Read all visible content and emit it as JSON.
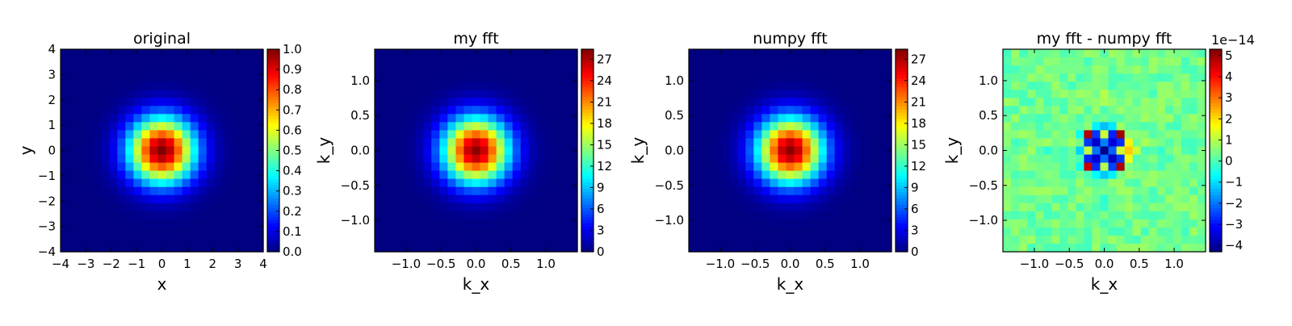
{
  "chart_data": [
    {
      "type": "heatmap",
      "title": "original",
      "xlabel": "x",
      "ylabel": "y",
      "xlim": [
        -4,
        4
      ],
      "ylim": [
        -4,
        4
      ],
      "xticks": [
        "−4",
        "−3",
        "−2",
        "−1",
        "0",
        "1",
        "2",
        "3",
        "4"
      ],
      "yticks": [
        "−4",
        "−3",
        "−2",
        "−1",
        "0",
        "1",
        "2",
        "3",
        "4"
      ],
      "colormap": "jet",
      "grid_size": 25,
      "field": "gaussian",
      "sigma": 0.95,
      "peak": 1.0,
      "colorbar": {
        "range": [
          0.0,
          1.0
        ],
        "ticks": [
          "0.0",
          "0.1",
          "0.2",
          "0.3",
          "0.4",
          "0.5",
          "0.6",
          "0.7",
          "0.8",
          "0.9",
          "1.0"
        ],
        "offset_label": ""
      }
    },
    {
      "type": "heatmap",
      "title": "my fft",
      "xlabel": "k_x",
      "ylabel": "k_y",
      "xlim": [
        -1.45,
        1.45
      ],
      "ylim": [
        -1.45,
        1.45
      ],
      "xticks": [
        "−1.0",
        "−0.5",
        "0.0",
        "0.5",
        "1.0"
      ],
      "yticks": [
        "−1.0",
        "−0.5",
        "0.0",
        "0.5",
        "1.0"
      ],
      "colormap": "jet",
      "grid_size": 25,
      "field": "gaussian",
      "sigma": 0.95,
      "peak": 28.0,
      "colorbar": {
        "range": [
          0,
          28.4
        ],
        "ticks": [
          "0",
          "3",
          "6",
          "9",
          "12",
          "15",
          "18",
          "21",
          "24",
          "27"
        ],
        "offset_label": ""
      }
    },
    {
      "type": "heatmap",
      "title": "numpy fft",
      "xlabel": "k_x",
      "ylabel": "k_y",
      "xlim": [
        -1.45,
        1.45
      ],
      "ylim": [
        -1.45,
        1.45
      ],
      "xticks": [
        "−1.0",
        "−0.5",
        "0.0",
        "0.5",
        "1.0"
      ],
      "yticks": [
        "−1.0",
        "−0.5",
        "0.0",
        "0.5",
        "1.0"
      ],
      "colormap": "jet",
      "grid_size": 25,
      "field": "gaussian",
      "sigma": 0.95,
      "peak": 28.0,
      "colorbar": {
        "range": [
          0,
          28.4
        ],
        "ticks": [
          "0",
          "3",
          "6",
          "9",
          "12",
          "15",
          "18",
          "21",
          "24",
          "27"
        ],
        "offset_label": ""
      }
    },
    {
      "type": "heatmap",
      "title": "my fft - numpy fft",
      "xlabel": "k_x",
      "ylabel": "k_y",
      "xlim": [
        -1.45,
        1.45
      ],
      "ylim": [
        -1.45,
        1.45
      ],
      "xticks": [
        "−1.0",
        "−0.5",
        "0.0",
        "0.5",
        "1.0"
      ],
      "yticks": [
        "−1.0",
        "−0.5",
        "0.0",
        "0.5",
        "1.0"
      ],
      "colormap": "jet",
      "grid_size": 25,
      "field": "residual",
      "background": 0.35,
      "colorbar": {
        "range": [
          -4.3,
          5.3
        ],
        "ticks": [
          "−4",
          "−3",
          "−2",
          "−1",
          "0",
          "1",
          "2",
          "3",
          "4",
          "5"
        ],
        "offset_label": "1e−14"
      },
      "cells": [
        {
          "i": 10,
          "j": 10,
          "v": 4.8
        },
        {
          "i": 14,
          "j": 10,
          "v": 5.0
        },
        {
          "i": 10,
          "j": 14,
          "v": 4.6
        },
        {
          "i": 14,
          "j": 14,
          "v": 4.9
        },
        {
          "i": 12,
          "j": 12,
          "v": -4.2
        },
        {
          "i": 12,
          "j": 10,
          "v": 1.2
        },
        {
          "i": 12,
          "j": 14,
          "v": 1.0
        },
        {
          "i": 10,
          "j": 12,
          "v": 1.1
        },
        {
          "i": 14,
          "j": 12,
          "v": 1.3
        },
        {
          "i": 11,
          "j": 11,
          "v": -3.6
        },
        {
          "i": 13,
          "j": 11,
          "v": -3.4
        },
        {
          "i": 11,
          "j": 13,
          "v": -3.5
        },
        {
          "i": 13,
          "j": 13,
          "v": -3.7
        },
        {
          "i": 11,
          "j": 12,
          "v": -2.0
        },
        {
          "i": 13,
          "j": 12,
          "v": -2.2
        },
        {
          "i": 12,
          "j": 11,
          "v": -1.9
        },
        {
          "i": 12,
          "j": 13,
          "v": -2.1
        },
        {
          "i": 11,
          "j": 10,
          "v": -2.6
        },
        {
          "i": 13,
          "j": 10,
          "v": -2.8
        },
        {
          "i": 11,
          "j": 14,
          "v": -2.7
        },
        {
          "i": 13,
          "j": 14,
          "v": -2.5
        },
        {
          "i": 10,
          "j": 11,
          "v": -2.6
        },
        {
          "i": 10,
          "j": 13,
          "v": -2.8
        },
        {
          "i": 14,
          "j": 11,
          "v": -2.7
        },
        {
          "i": 14,
          "j": 13,
          "v": -2.6
        },
        {
          "i": 12,
          "j": 9,
          "v": -1.3
        },
        {
          "i": 12,
          "j": 15,
          "v": -1.2
        },
        {
          "i": 9,
          "j": 12,
          "v": -1.1
        },
        {
          "i": 15,
          "j": 12,
          "v": 2.2
        },
        {
          "i": 15,
          "j": 11,
          "v": 1.8
        },
        {
          "i": 15,
          "j": 13,
          "v": 1.6
        },
        {
          "i": 11,
          "j": 9,
          "v": -0.8
        },
        {
          "i": 13,
          "j": 9,
          "v": -0.9
        },
        {
          "i": 11,
          "j": 15,
          "v": -0.7
        },
        {
          "i": 13,
          "j": 15,
          "v": -0.8
        },
        {
          "i": 9,
          "j": 10,
          "v": -0.6
        },
        {
          "i": 9,
          "j": 14,
          "v": -0.5
        },
        {
          "i": 16,
          "j": 12,
          "v": 1.2
        },
        {
          "i": 17,
          "j": 11,
          "v": 0.9
        },
        {
          "i": 12,
          "j": 6,
          "v": 0.9
        },
        {
          "i": 12,
          "j": 5,
          "v": 1.0
        },
        {
          "i": 12,
          "j": 18,
          "v": -0.3
        },
        {
          "i": 12,
          "j": 19,
          "v": -0.2
        },
        {
          "i": 5,
          "j": 12,
          "v": -0.3
        },
        {
          "i": 19,
          "j": 12,
          "v": -0.2
        }
      ]
    }
  ]
}
